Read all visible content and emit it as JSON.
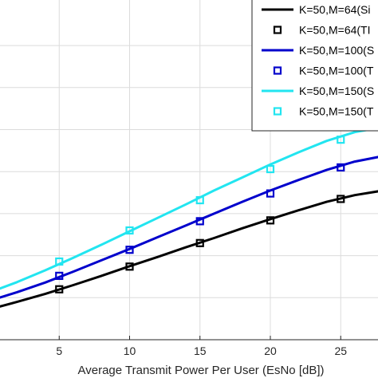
{
  "chart_data": {
    "type": "line",
    "title": "",
    "xlabel": "Average Transmit Power Per User (EsNo [dB])",
    "ylabel": "",
    "xlim": [
      0,
      30
    ],
    "ylim": [
      0,
      6
    ],
    "x_ticks": [
      "5",
      "10",
      "15",
      "20",
      "25"
    ],
    "grid": true,
    "legend_position": "top-right",
    "x_sim": [
      0,
      2,
      4,
      6,
      8,
      10,
      12,
      14,
      16,
      18,
      20,
      22,
      24,
      26,
      28,
      30
    ],
    "x_markers": [
      5,
      10,
      15,
      20,
      25
    ],
    "series": [
      {
        "name": "K=50,M=64(Si",
        "style": "line",
        "color": "#000000",
        "values": [
          0.72,
          0.9,
          1.09,
          1.3,
          1.52,
          1.75,
          1.97,
          2.2,
          2.42,
          2.65,
          2.87,
          3.08,
          3.28,
          3.44,
          3.55,
          3.62
        ]
      },
      {
        "name": "K=50,M=64(TI",
        "style": "marker",
        "color": "#000000",
        "values": [
          1.2,
          1.74,
          2.3,
          2.84,
          3.35
        ]
      },
      {
        "name": "K=50,M=100(S",
        "style": "line",
        "color": "#0000cc",
        "values": [
          0.92,
          1.13,
          1.36,
          1.62,
          1.89,
          2.16,
          2.44,
          2.72,
          3.0,
          3.28,
          3.55,
          3.8,
          4.04,
          4.24,
          4.37,
          4.45
        ]
      },
      {
        "name": "K=50,M=100(T",
        "style": "marker",
        "color": "#0000cc",
        "values": [
          1.52,
          2.14,
          2.82,
          3.48,
          4.1
        ]
      },
      {
        "name": "K=50,M=150(S",
        "style": "line",
        "color": "#22e5f0",
        "values": [
          1.12,
          1.37,
          1.65,
          1.95,
          2.26,
          2.58,
          2.9,
          3.22,
          3.55,
          3.86,
          4.17,
          4.46,
          4.73,
          4.94,
          5.06,
          5.1
        ]
      },
      {
        "name": "K=50,M=150(T",
        "style": "marker",
        "color": "#22e5f0",
        "values": [
          1.86,
          2.6,
          3.32,
          4.06,
          4.76
        ]
      }
    ]
  }
}
